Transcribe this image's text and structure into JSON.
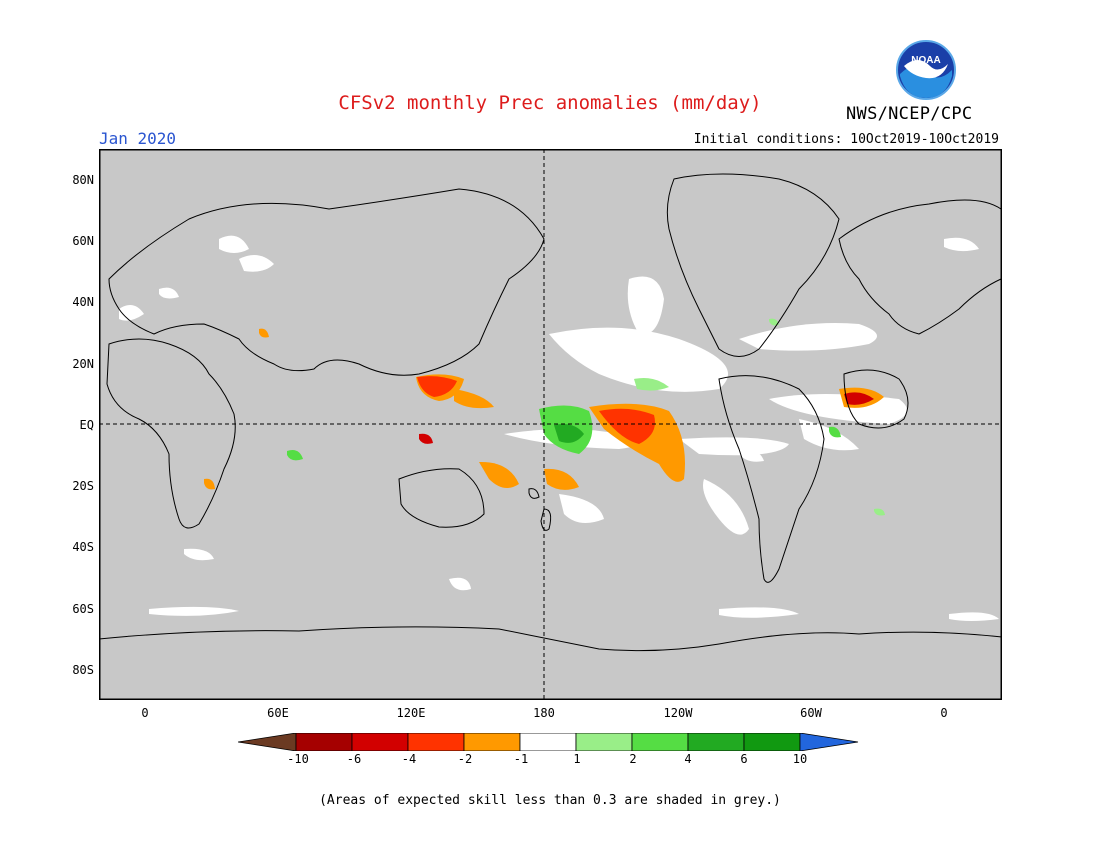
{
  "header": {
    "title": "CFSv2 monthly Prec anomalies (mm/day)",
    "agency": "NWS/NCEP/CPC",
    "logo_text": "NOAA",
    "month": "Jan 2020",
    "initial_conditions": "Initial conditions: 10Oct2019-10Oct2019"
  },
  "map": {
    "background_color": "#c8c8c8",
    "lat_labels": [
      "80N",
      "60N",
      "40N",
      "20N",
      "EQ",
      "20S",
      "40S",
      "60S",
      "80S"
    ],
    "lon_labels": [
      "0",
      "60E",
      "120E",
      "180",
      "120W",
      "60W",
      "0"
    ]
  },
  "colorbar": {
    "labels": [
      "-10",
      "-6",
      "-4",
      "-2",
      "-1",
      "1",
      "2",
      "4",
      "6",
      "10"
    ],
    "colors": [
      "#6b3a22",
      "#a50000",
      "#d20000",
      "#ff3300",
      "#ff9900",
      "#ffffff",
      "#99ee88",
      "#55dd44",
      "#22aa22",
      "#119911",
      "#2266dd"
    ]
  },
  "footnote": "(Areas of expected skill less than 0.3 are shaded in grey.)"
}
